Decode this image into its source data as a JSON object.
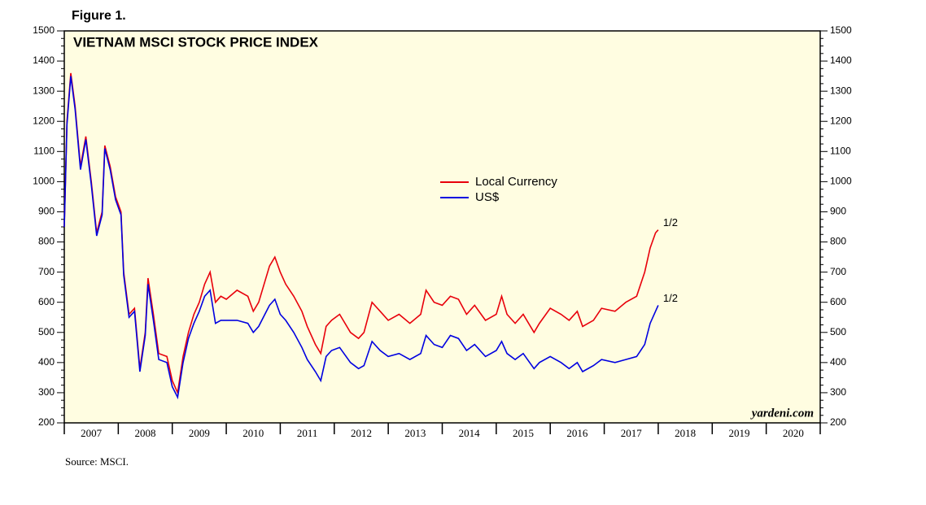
{
  "chart_data": {
    "type": "line",
    "figure_label": "Figure 1.",
    "title": "VIETNAM MSCI STOCK PRICE INDEX",
    "watermark": "yardeni.com",
    "source": "Source: MSCI.",
    "xlim": [
      2007,
      2021
    ],
    "xticks": [
      {
        "value": 2007.5,
        "label": "2007"
      },
      {
        "value": 2008.5,
        "label": "2008"
      },
      {
        "value": 2009.5,
        "label": "2009"
      },
      {
        "value": 2010.5,
        "label": "2010"
      },
      {
        "value": 2011.5,
        "label": "2011"
      },
      {
        "value": 2012.5,
        "label": "2012"
      },
      {
        "value": 2013.5,
        "label": "2013"
      },
      {
        "value": 2014.5,
        "label": "2014"
      },
      {
        "value": 2015.5,
        "label": "2015"
      },
      {
        "value": 2016.5,
        "label": "2016"
      },
      {
        "value": 2017.5,
        "label": "2017"
      },
      {
        "value": 2018.5,
        "label": "2018"
      },
      {
        "value": 2019.5,
        "label": "2019"
      },
      {
        "value": 2020.5,
        "label": "2020"
      }
    ],
    "ylim": [
      200,
      1500
    ],
    "yticks": [
      200,
      300,
      400,
      500,
      600,
      700,
      800,
      900,
      1000,
      1100,
      1200,
      1300,
      1400,
      1500
    ],
    "legend": "center",
    "x": [
      2007.0,
      2007.05,
      2007.12,
      2007.2,
      2007.3,
      2007.4,
      2007.5,
      2007.6,
      2007.7,
      2007.75,
      2007.85,
      2007.95,
      2008.05,
      2008.1,
      2008.2,
      2008.3,
      2008.4,
      2008.5,
      2008.55,
      2008.65,
      2008.75,
      2008.9,
      2009.0,
      2009.1,
      2009.2,
      2009.3,
      2009.4,
      2009.5,
      2009.6,
      2009.7,
      2009.8,
      2009.9,
      2010.0,
      2010.2,
      2010.4,
      2010.5,
      2010.6,
      2010.8,
      2010.9,
      2011.0,
      2011.1,
      2011.25,
      2011.4,
      2011.5,
      2011.65,
      2011.75,
      2011.85,
      2011.95,
      2012.1,
      2012.3,
      2012.45,
      2012.55,
      2012.7,
      2012.85,
      2013.0,
      2013.2,
      2013.4,
      2013.6,
      2013.7,
      2013.85,
      2014.0,
      2014.15,
      2014.3,
      2014.45,
      2014.6,
      2014.8,
      2015.0,
      2015.1,
      2015.2,
      2015.35,
      2015.5,
      2015.7,
      2015.8,
      2016.0,
      2016.2,
      2016.35,
      2016.5,
      2016.6,
      2016.8,
      2016.95,
      2017.2,
      2017.4,
      2017.6,
      2017.75,
      2017.85,
      2017.95,
      2018.0
    ],
    "series": [
      {
        "name": "Local Currency",
        "color": "#e8000b",
        "end_label": "1/2",
        "values": [
          850,
          1200,
          1360,
          1250,
          1050,
          1150,
          1000,
          830,
          900,
          1120,
          1050,
          950,
          900,
          700,
          560,
          580,
          380,
          500,
          680,
          560,
          430,
          420,
          340,
          300,
          420,
          500,
          560,
          600,
          660,
          700,
          600,
          620,
          610,
          640,
          620,
          570,
          600,
          720,
          750,
          700,
          660,
          620,
          570,
          520,
          460,
          430,
          520,
          540,
          560,
          500,
          480,
          500,
          600,
          570,
          540,
          560,
          530,
          560,
          640,
          600,
          590,
          620,
          610,
          560,
          590,
          540,
          560,
          620,
          560,
          530,
          560,
          500,
          530,
          580,
          560,
          540,
          570,
          520,
          540,
          580,
          570,
          600,
          620,
          700,
          780,
          830,
          840
        ]
      },
      {
        "name": "US$",
        "color": "#0000e0",
        "end_label": "1/2",
        "values": [
          850,
          1190,
          1350,
          1240,
          1040,
          1140,
          990,
          820,
          890,
          1110,
          1040,
          940,
          890,
          690,
          550,
          570,
          370,
          490,
          660,
          540,
          410,
          400,
          320,
          285,
          400,
          480,
          530,
          570,
          620,
          640,
          530,
          540,
          540,
          540,
          530,
          500,
          520,
          590,
          610,
          560,
          540,
          500,
          450,
          410,
          370,
          340,
          420,
          440,
          450,
          400,
          380,
          390,
          470,
          440,
          420,
          430,
          410,
          430,
          490,
          460,
          450,
          490,
          480,
          440,
          460,
          420,
          440,
          470,
          430,
          410,
          430,
          380,
          400,
          420,
          400,
          380,
          400,
          370,
          390,
          410,
          400,
          410,
          420,
          460,
          530,
          570,
          590
        ]
      }
    ]
  }
}
